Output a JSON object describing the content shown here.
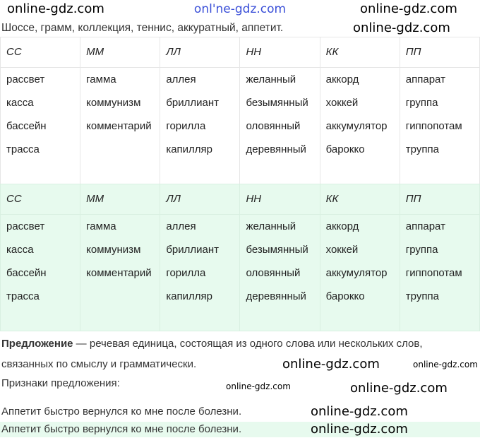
{
  "watermark": "online-gdz.com",
  "watermark_top": "onl'ne-gdz.com",
  "intro": "Шоссе, грамм, коллекция, теннис, аккуратный, аппетит.",
  "table": {
    "headers": [
      "СС",
      "ММ",
      "ЛЛ",
      "НН",
      "КК",
      "ПП"
    ],
    "columns": [
      [
        "рассвет",
        "касса",
        "бассейн",
        "трасса"
      ],
      [
        "гамма",
        "коммунизм",
        "комментарий"
      ],
      [
        "аллея",
        "бриллиант",
        "горилла",
        "капилляр"
      ],
      [
        "желанный",
        "безымянный",
        "оловянный",
        "деревянный"
      ],
      [
        "аккорд",
        "хоккей",
        "аккумулятор",
        "барокко"
      ],
      [
        "аппарат",
        "группа",
        "гиппопотам",
        "труппа"
      ]
    ]
  },
  "definition": {
    "term": "Предложение",
    "text": " — речевая единица, состоящая из одного слова или нескольких слов, связанных по смыслу и грамматически."
  },
  "signs_label": "Признаки предложения:",
  "sentence": "Аппетит быстро вернулся ко мне после болезни.",
  "colors": {
    "highlight": "#e7faee",
    "watermark_top": "#3a4fd8"
  }
}
